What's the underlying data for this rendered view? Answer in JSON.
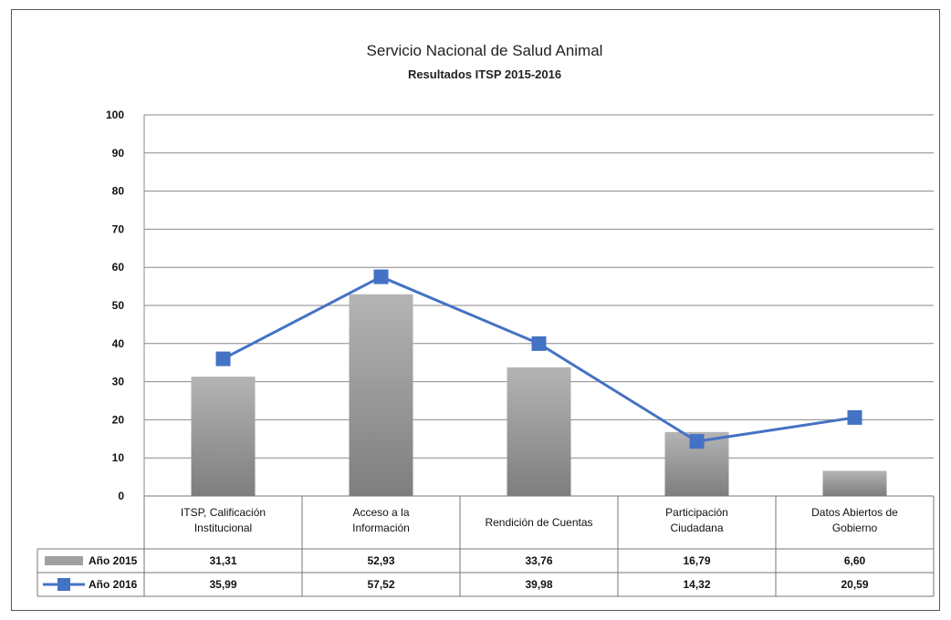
{
  "chart_data": {
    "type": "bar",
    "title": "Servicio Nacional de Salud Animal",
    "subtitle": "Resultados ITSP 2015-2016",
    "xlabel": "",
    "ylabel": "",
    "ylim": [
      0,
      100
    ],
    "y_ticks": [
      "0",
      "10",
      "20",
      "30",
      "40",
      "50",
      "60",
      "70",
      "80",
      "90",
      "100"
    ],
    "grid": true,
    "legend": "data-table",
    "categories": [
      [
        "ITSP, Calificación",
        "Institucional"
      ],
      [
        "Acceso a la",
        "Información"
      ],
      [
        "Rendición de Cuentas"
      ],
      [
        "Participación",
        "Ciudadana"
      ],
      [
        "Datos Abiertos de",
        "Gobierno"
      ]
    ],
    "series": [
      {
        "name": "Año 2015",
        "mark": "bar",
        "color": "#9a9a9a",
        "values": [
          31.31,
          52.93,
          33.76,
          16.79,
          6.6
        ],
        "labels": [
          "31,31",
          "52,93",
          "33,76",
          "16,79",
          "6,60"
        ]
      },
      {
        "name": "Año 2016",
        "mark": "line",
        "color": "#4472c4",
        "values": [
          35.99,
          57.52,
          39.98,
          14.32,
          20.59
        ],
        "labels": [
          "35,99",
          "57,52",
          "39,98",
          "14,32",
          "20,59"
        ]
      }
    ]
  }
}
